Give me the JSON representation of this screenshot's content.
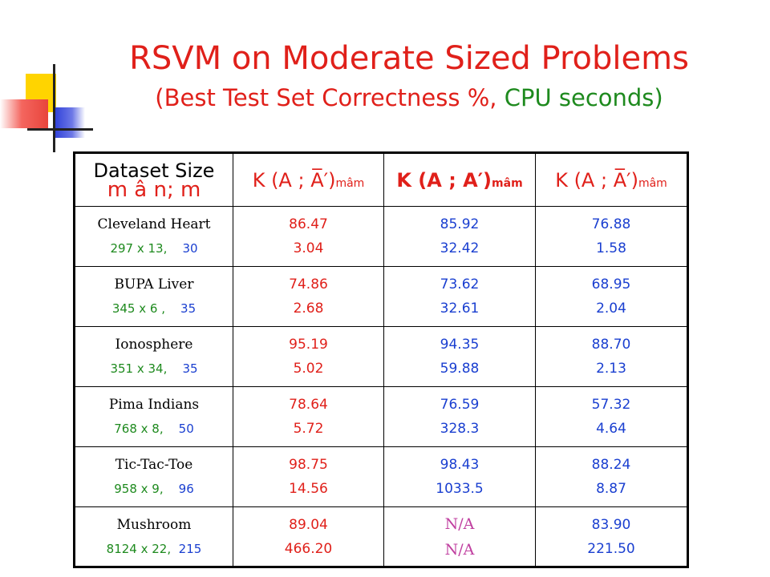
{
  "title": "RSVM on Moderate Sized Problems",
  "subtitle": {
    "open_paren": "(",
    "correctness": "Best Test Set Correctness %,",
    "cpu": "CPU seconds)"
  },
  "colors": {
    "red": "#e0201a",
    "green": "#1e8a1e",
    "blue": "#1a3fd0",
    "na": "#c040a0"
  },
  "table": {
    "header": {
      "dataset_line1": "Dataset Size",
      "dataset_line2": "m â n;  m",
      "kernel1": "K (A ; A̅′)",
      "kernel1_sub": "mâm",
      "kernel2": "K (A ; A′)",
      "kernel2_sub": "mâm",
      "kernel3": "K (A ; A̅′)",
      "kernel3_sub": "mâm"
    },
    "rows": [
      {
        "name": "Cleveland Heart",
        "dims": "297 x 13,",
        "m": "30",
        "c1_acc": "86.47",
        "c1_time": "3.04",
        "c2_acc": "85.92",
        "c2_time": "32.42",
        "c3_acc": "76.88",
        "c3_time": "1.58"
      },
      {
        "name": "BUPA Liver",
        "dims": "345 x 6 ,",
        "m": "35",
        "c1_acc": "74.86",
        "c1_time": "2.68",
        "c2_acc": "73.62",
        "c2_time": "32.61",
        "c3_acc": "68.95",
        "c3_time": "2.04"
      },
      {
        "name": "Ionosphere",
        "dims": "351 x 34,",
        "m": "35",
        "c1_acc": "95.19",
        "c1_time": "5.02",
        "c2_acc": "94.35",
        "c2_time": "59.88",
        "c3_acc": "88.70",
        "c3_time": "2.13"
      },
      {
        "name": "Pima Indians",
        "dims": "768 x 8,",
        "m": "50",
        "c1_acc": "78.64",
        "c1_time": "5.72",
        "c2_acc": "76.59",
        "c2_time": "328.3",
        "c3_acc": "57.32",
        "c3_time": "4.64"
      },
      {
        "name": "Tic-Tac-Toe",
        "dims": "958 x 9,",
        "m": "96",
        "c1_acc": "98.75",
        "c1_time": "14.56",
        "c2_acc": "98.43",
        "c2_time": "1033.5",
        "c3_acc": "88.24",
        "c3_time": "8.87"
      },
      {
        "name": "Mushroom",
        "dims": "8124 x 22,",
        "m": "215",
        "c1_acc": "89.04",
        "c1_time": "466.20",
        "c2_acc": "N/A",
        "c2_time": "N/A",
        "c3_acc": "83.90",
        "c3_time": "221.50"
      }
    ]
  }
}
